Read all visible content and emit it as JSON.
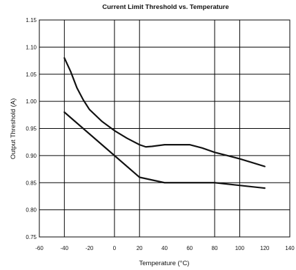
{
  "chart_data": {
    "type": "line",
    "title": "Current Limit Threshold vs. Temperature",
    "xlabel": "Temperature (°C)",
    "ylabel": "Output Threshold (A)",
    "xlim": [
      -60,
      140
    ],
    "ylim": [
      0.75,
      1.15
    ],
    "x_ticks": [
      "-60",
      "-40",
      "-20",
      "0",
      "20",
      "40",
      "60",
      "80",
      "100",
      "120",
      "140"
    ],
    "y_ticks": [
      "0.75",
      "0.80",
      "0.85",
      "0.90",
      "0.95",
      "1.00",
      "1.05",
      "1.10",
      "1.15"
    ],
    "grid": true,
    "series": [
      {
        "color": "#111111",
        "x": [
          -40,
          -35,
          -30,
          -25,
          -20,
          -10,
          0,
          10,
          20,
          25,
          30,
          40,
          50,
          60,
          70,
          80,
          90,
          100,
          110,
          120
        ],
        "y": [
          1.08,
          1.055,
          1.025,
          1.003,
          0.985,
          0.963,
          0.946,
          0.932,
          0.92,
          0.916,
          0.917,
          0.92,
          0.92,
          0.92,
          0.914,
          0.906,
          0.9,
          0.894,
          0.887,
          0.88
        ]
      },
      {
        "color": "#111111",
        "x": [
          -40,
          -20,
          0,
          20,
          40,
          60,
          80,
          100,
          120
        ],
        "y": [
          0.98,
          0.94,
          0.9,
          0.86,
          0.85,
          0.85,
          0.85,
          0.845,
          0.84
        ]
      }
    ]
  }
}
